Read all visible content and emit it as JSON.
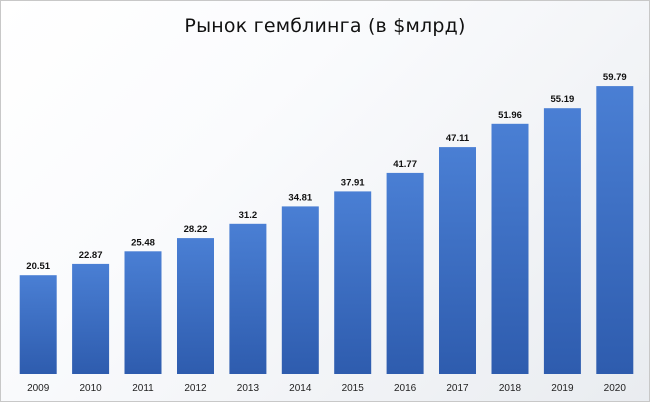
{
  "chart_data": {
    "type": "bar",
    "title": "Рынок гемблинга (в $млрд)",
    "categories": [
      "2009",
      "2010",
      "2011",
      "2012",
      "2013",
      "2014",
      "2015",
      "2016",
      "2017",
      "2018",
      "2019",
      "2020"
    ],
    "values": [
      20.51,
      22.87,
      25.48,
      28.22,
      31.2,
      34.81,
      37.91,
      41.77,
      47.11,
      51.96,
      55.19,
      59.79
    ],
    "value_labels": [
      "20.51",
      "22.87",
      "25.48",
      "28.22",
      "31.2",
      "34.81",
      "37.91",
      "41.77",
      "47.11",
      "51.96",
      "55.19",
      "59.79"
    ],
    "xlabel": "",
    "ylabel": "",
    "ylim": [
      0,
      65
    ],
    "grid": false,
    "legend": "none",
    "bar_color_top": "#4a7fd4",
    "bar_color_bottom": "#2e5cae"
  }
}
